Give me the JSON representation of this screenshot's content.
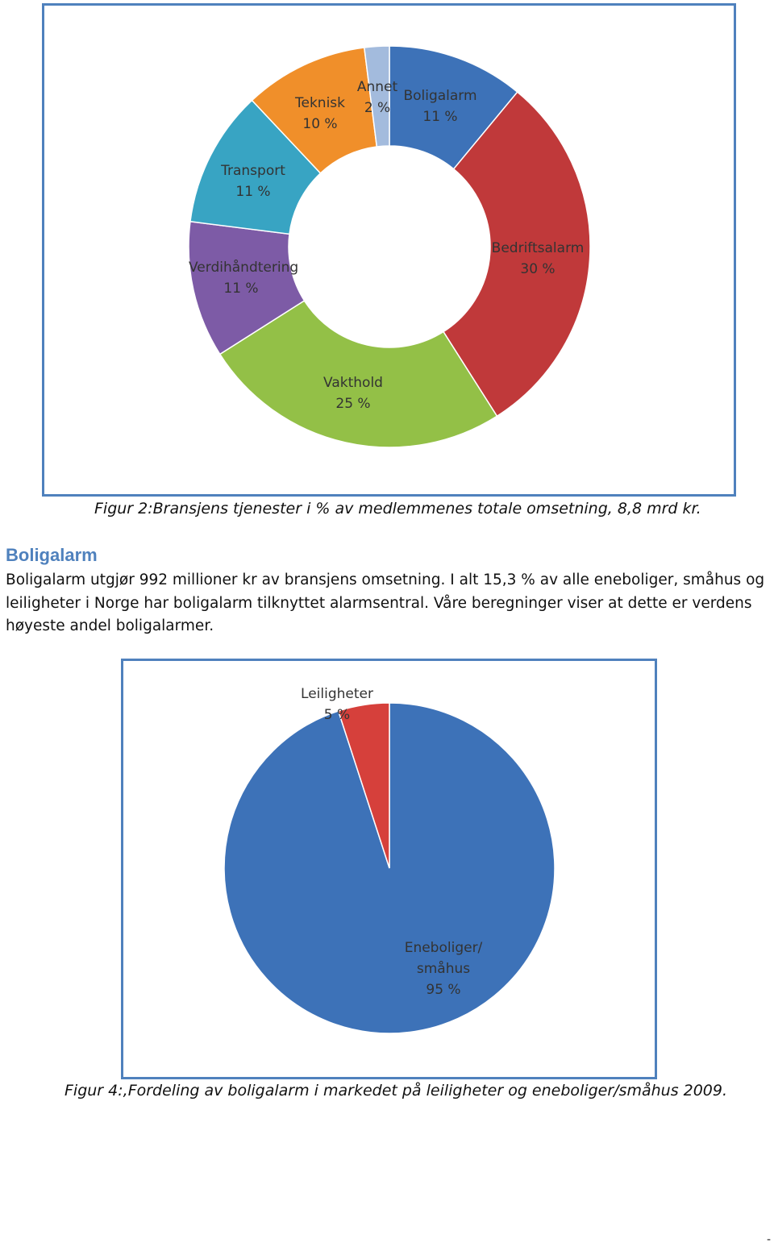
{
  "chart_data": [
    {
      "type": "donut",
      "categories": [
        "Boligalarm",
        "Bedriftsalarm",
        "Vakthold",
        "Verdihåndtering",
        "Transport",
        "Teknisk",
        "Annet"
      ],
      "values": [
        11,
        30,
        25,
        11,
        11,
        10,
        2
      ],
      "value_labels": [
        "11 %",
        "30 %",
        "25 %",
        "11 %",
        "11 %",
        "10 %",
        "2 %"
      ],
      "colors": [
        "#3d72b8",
        "#c0393a",
        "#93c047",
        "#7d5ba6",
        "#38a4c3",
        "#f08f2a",
        "#a3bbdd"
      ],
      "caption": "Figur 2:Bransjens tjenester i % av medlemmenes totale omsetning, 8,8 mrd kr."
    },
    {
      "type": "pie",
      "categories": [
        "Eneboliger/ småhus",
        "Leiligheter"
      ],
      "values": [
        95,
        5
      ],
      "value_labels": [
        "95 %",
        "5 %"
      ],
      "colors": [
        "#3d72b8",
        "#d6403b"
      ],
      "caption": "Figur 4:,Fordeling av boligalarm i markedet på leiligheter og eneboliger/småhus 2009."
    }
  ],
  "section": {
    "heading": "Boligalarm",
    "paragraph": "Boligalarm utgjør 992 millioner kr av bransjens omsetning. I alt 15,3 % av alle eneboliger, småhus og leiligheter i Norge har boligalarm tilknyttet alarmsentral. Våre beregninger viser at dette er verdens høyeste andel boligalarmer."
  },
  "page_marker": "-"
}
